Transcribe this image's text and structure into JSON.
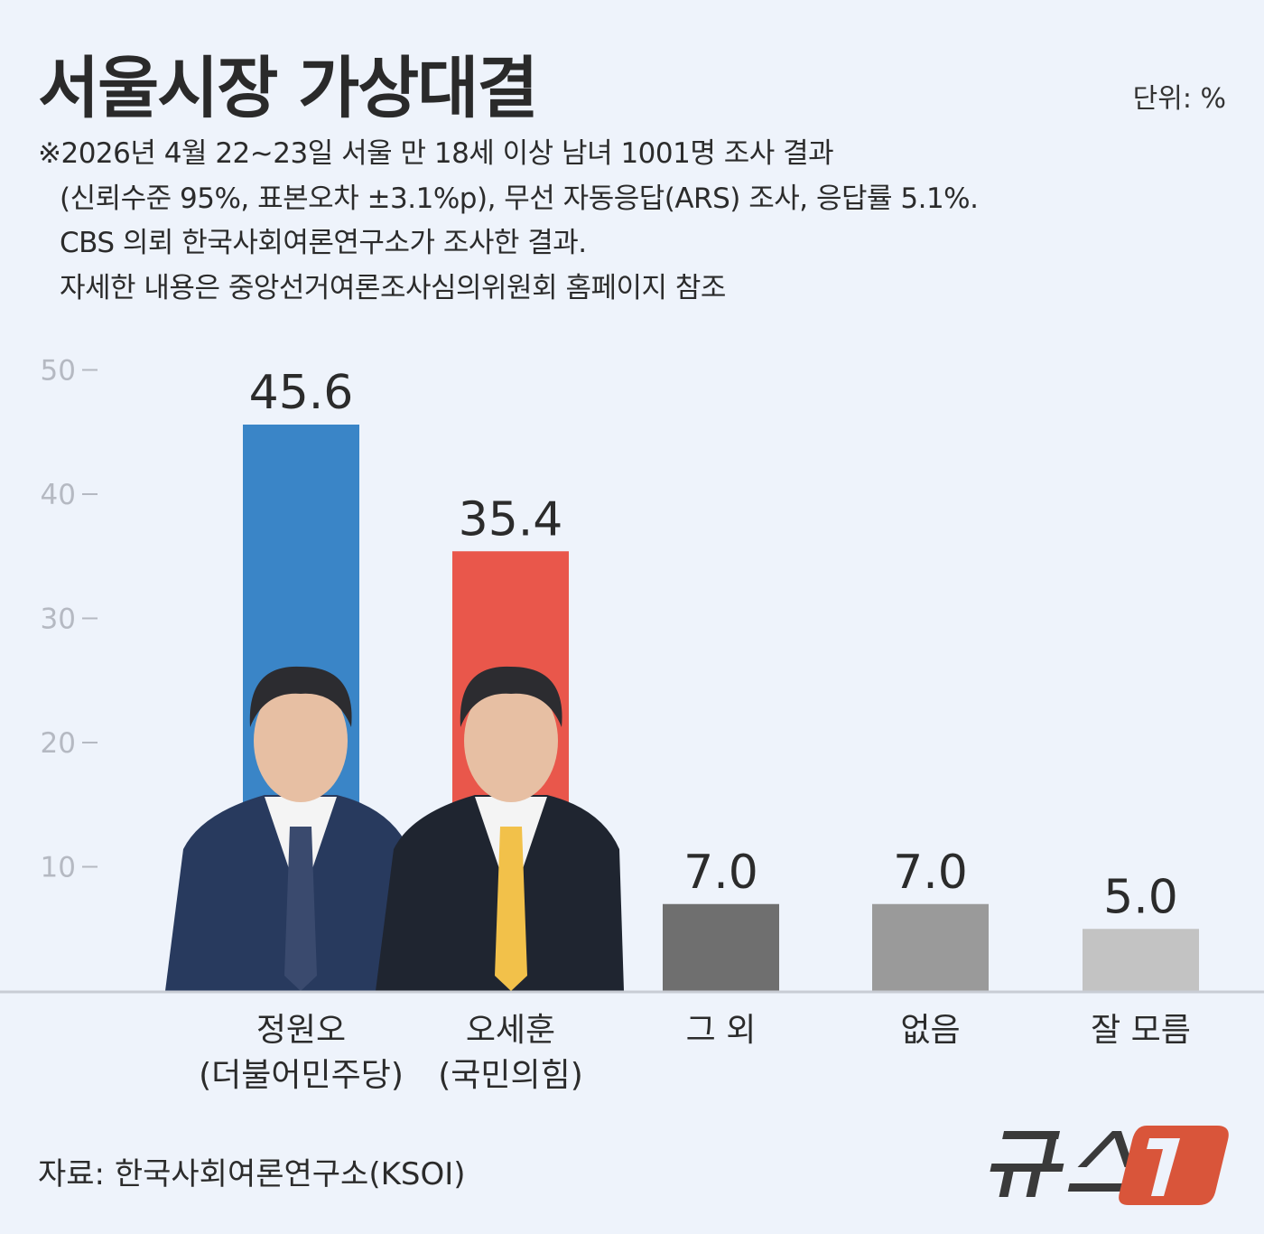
{
  "header": {
    "title": "서울시장 가상대결",
    "unit": "단위: %",
    "notes": [
      "※2026년 4월 22~23일 서울 만 18세 이상 남녀 1001명 조사 결과",
      "(신뢰수준 95%, 표본오차 ±3.1%p), 무선 자동응답(ARS) 조사, 응답률 5.1%.",
      "CBS 의뢰 한국사회여론연구소가 조사한 결과.",
      "자세한 내용은 중앙선거여론조사심의위원회 홈페이지 참조"
    ]
  },
  "chart_data": {
    "type": "bar",
    "title": "서울시장 가상대결",
    "categories": [
      [
        "정원오",
        "(더불어민주당)"
      ],
      [
        "오세훈",
        "(국민의힘)"
      ],
      [
        "그 외"
      ],
      [
        "없음"
      ],
      [
        "잘 모름"
      ]
    ],
    "values": [
      45.6,
      35.4,
      7.0,
      7.0,
      5.0
    ],
    "value_labels": [
      "45.6",
      "35.4",
      "7.0",
      "7.0",
      "5.0"
    ],
    "colors": [
      "#3a85c7",
      "#e9574b",
      "#6f6f6f",
      "#9a9a9a",
      "#c3c3c3"
    ],
    "yticks": [
      10,
      20,
      30,
      40,
      50
    ],
    "ylim": [
      0,
      50
    ],
    "grid": false,
    "legend": "none",
    "unit": "%"
  },
  "footer": {
    "source": "자료: 한국사회여론연구소(KSOI)",
    "logo_text": "뉴스1",
    "logo_color": "#d9553a"
  }
}
